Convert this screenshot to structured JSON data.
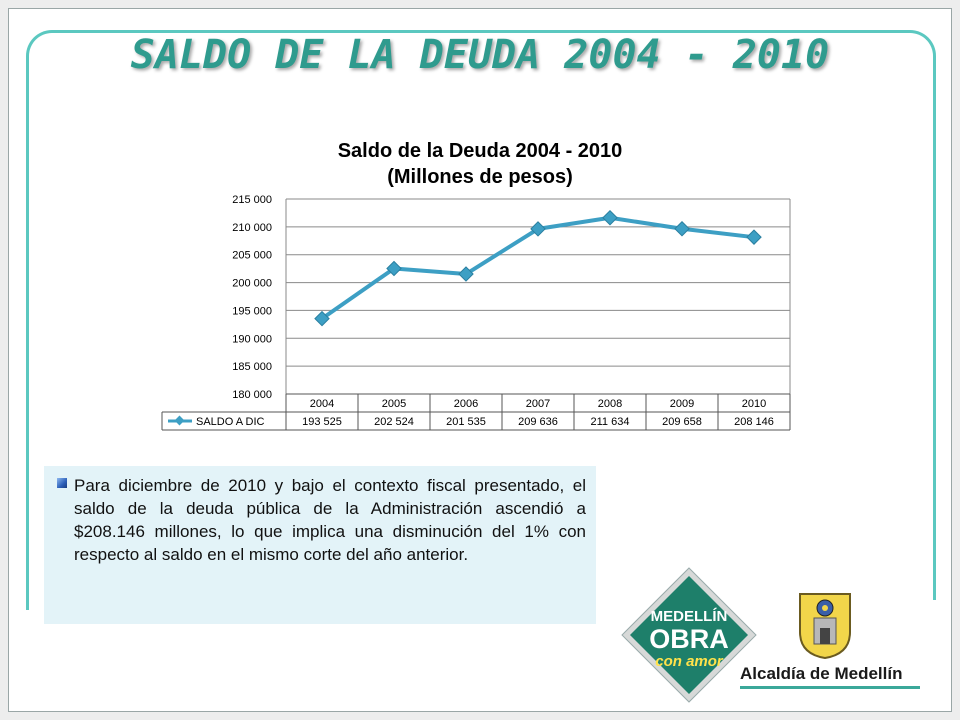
{
  "slide": {
    "title": "SALDO DE LA DEUDA 2004 - 2010",
    "paragraph": "Para diciembre de 2010 y bajo el contexto fiscal presentado, el saldo de la deuda pública de la Administración ascendió a $208.146 millones, lo que implica una disminución del 1% con respecto al saldo en el mismo corte del año anterior."
  },
  "logo": {
    "line1": "MEDELLÍN",
    "line2": "OBRA",
    "line3": "con amor",
    "org": "Alcaldía de Medellín"
  },
  "colors": {
    "title": "#2f9b8e",
    "series_line": "#3d9fc4",
    "marker": "#3d9fc4",
    "frame_accent": "#5bc8c0"
  },
  "chart_data": {
    "type": "line",
    "title": "Saldo de la Deuda 2004 - 2010",
    "subtitle": "(Millones de pesos)",
    "categories": [
      "2004",
      "2005",
      "2006",
      "2007",
      "2008",
      "2009",
      "2010"
    ],
    "series": [
      {
        "name": "SALDO A DIC",
        "values": [
          193525,
          202524,
          201535,
          209636,
          211634,
          209658,
          208146
        ],
        "value_labels": [
          "193 525",
          "202 524",
          "201 535",
          "209 636",
          "211 634",
          "209 658",
          "208 146"
        ]
      }
    ],
    "y_ticks": [
      "215 000",
      "210 000",
      "205 000",
      "200 000",
      "195 000",
      "190 000",
      "185 000",
      "180 000"
    ],
    "ylim": [
      180000,
      215000
    ],
    "grid": true,
    "legend": "data-table"
  }
}
